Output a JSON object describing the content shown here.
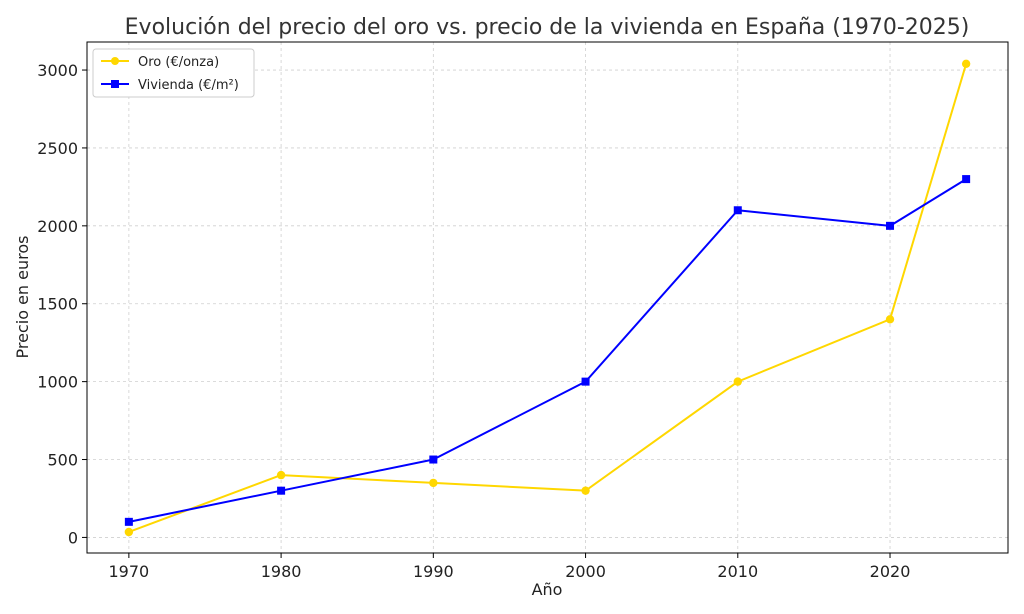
{
  "chart_data": {
    "type": "line",
    "title": "Evolución del precio del oro vs. precio de la vivienda en España (1970-2025)",
    "xlabel": "Año",
    "ylabel": "Precio en euros",
    "x": [
      1970,
      1980,
      1990,
      2000,
      2010,
      2020,
      2025
    ],
    "xlim": [
      1967.25,
      2027.75
    ],
    "ylim": [
      -100,
      3180
    ],
    "xticks": [
      1970,
      1980,
      1990,
      2000,
      2010,
      2020
    ],
    "yticks": [
      0,
      500,
      1000,
      1500,
      2000,
      2500,
      3000
    ],
    "grid": true,
    "legend_position": "top-left",
    "series": [
      {
        "name": "Oro (€/onza)",
        "color": "#FFD700",
        "marker": "circle",
        "values": [
          35,
          400,
          350,
          300,
          1000,
          1400,
          3040
        ]
      },
      {
        "name": "Vivienda (€/m²)",
        "color": "#0000FF",
        "marker": "square",
        "values": [
          100,
          300,
          500,
          1000,
          2100,
          2000,
          2300
        ]
      }
    ]
  }
}
